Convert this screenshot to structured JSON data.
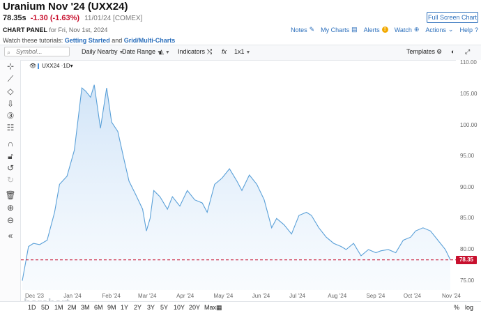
{
  "header": {
    "title": "Uranium Nov '24 (UXX24)",
    "last": "78.35s",
    "change": "-1.30 (-1.63%)",
    "meta": "11/01/24 [COMEX]",
    "fullscreen_label": "Full Screen Chart"
  },
  "panel": {
    "label": "CHART PANEL",
    "date": "for Fri, Nov 1st, 2024",
    "links": [
      "Notes",
      "My Charts",
      "Alerts",
      "Watch",
      "Actions",
      "Help"
    ]
  },
  "tutorial": {
    "prefix": "Watch these tutorials:",
    "link1": "Getting Started",
    "and": "and",
    "link2": "Grid/Multi-Charts"
  },
  "toolbar": {
    "symbol_placeholder": "Symbol...",
    "interval": "Daily Nearby",
    "date_range": "Date Range",
    "indicators": "Indicators",
    "layout": "1x1",
    "templates": "Templates"
  },
  "legend": {
    "label": "UXX24 ·1D▾"
  },
  "watermark": "barchart",
  "price_tag": "78.35",
  "y_ticks": [
    "110.00",
    "105.00",
    "100.00",
    "95.00",
    "90.00",
    "85.00",
    "80.00",
    "75.00"
  ],
  "x_ticks": [
    "Dec '23",
    "Jan '24",
    "Feb '24",
    "Mar '24",
    "Apr '24",
    "May '24",
    "Jun '24",
    "Jul '24",
    "Aug '24",
    "Sep '24",
    "Oct '24",
    "Nov '24"
  ],
  "timeframes": [
    "1D",
    "5D",
    "1M",
    "2M",
    "3M",
    "6M",
    "9M",
    "1Y",
    "2Y",
    "3Y",
    "5Y",
    "10Y",
    "20Y",
    "Max"
  ],
  "bottom_right": [
    "%",
    "log"
  ],
  "colors": {
    "line": "#5aa0d8",
    "fill": "#d6e8f8",
    "last_price": "#c8102e",
    "link": "#2a6ebb"
  },
  "chart_data": {
    "type": "area",
    "ylim": [
      73.5,
      110.5
    ],
    "x": [
      "2023-11-22",
      "2023-11-27",
      "2023-12-01",
      "2023-12-06",
      "2023-12-12",
      "2023-12-18",
      "2023-12-22",
      "2023-12-28",
      "2024-01-03",
      "2024-01-09",
      "2024-01-12",
      "2024-01-16",
      "2024-01-19",
      "2024-01-24",
      "2024-01-29",
      "2024-02-02",
      "2024-02-07",
      "2024-02-12",
      "2024-02-16",
      "2024-02-21",
      "2024-02-27",
      "2024-03-01",
      "2024-03-04",
      "2024-03-07",
      "2024-03-12",
      "2024-03-18",
      "2024-03-22",
      "2024-03-28",
      "2024-04-03",
      "2024-04-09",
      "2024-04-15",
      "2024-04-19",
      "2024-04-25",
      "2024-05-01",
      "2024-05-07",
      "2024-05-13",
      "2024-05-17",
      "2024-05-23",
      "2024-05-29",
      "2024-06-04",
      "2024-06-10",
      "2024-06-14",
      "2024-06-20",
      "2024-06-26",
      "2024-07-02",
      "2024-07-08",
      "2024-07-12",
      "2024-07-18",
      "2024-07-24",
      "2024-07-30",
      "2024-08-05",
      "2024-08-09",
      "2024-08-15",
      "2024-08-21",
      "2024-08-27",
      "2024-09-02",
      "2024-09-06",
      "2024-09-12",
      "2024-09-18",
      "2024-09-24",
      "2024-09-30",
      "2024-10-04",
      "2024-10-10",
      "2024-10-16",
      "2024-10-22",
      "2024-10-28",
      "2024-11-01"
    ],
    "y": [
      75.0,
      80.5,
      81.0,
      80.8,
      81.5,
      86.0,
      90.5,
      91.8,
      96.0,
      106.0,
      105.5,
      104.5,
      106.5,
      99.5,
      106.0,
      100.5,
      99.0,
      94.5,
      91.0,
      89.0,
      86.5,
      83.0,
      85.0,
      89.5,
      88.5,
      86.5,
      88.5,
      87.0,
      89.5,
      88.0,
      87.5,
      86.0,
      90.5,
      91.5,
      93.0,
      91.0,
      89.5,
      92.0,
      90.5,
      88.0,
      83.5,
      85.0,
      84.0,
      82.5,
      85.5,
      86.0,
      85.5,
      83.5,
      82.0,
      81.0,
      80.5,
      80.0,
      81.0,
      79.0,
      80.0,
      79.5,
      79.8,
      80.0,
      79.5,
      81.5,
      82.0,
      83.0,
      83.5,
      83.0,
      81.5,
      80.0,
      78.35
    ],
    "last_price": 78.35
  }
}
